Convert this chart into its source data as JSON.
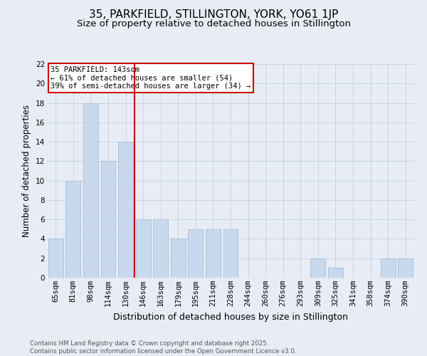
{
  "title": "35, PARKFIELD, STILLINGTON, YORK, YO61 1JP",
  "subtitle": "Size of property relative to detached houses in Stillington",
  "xlabel": "Distribution of detached houses by size in Stillington",
  "ylabel": "Number of detached properties",
  "categories": [
    "65sqm",
    "81sqm",
    "98sqm",
    "114sqm",
    "130sqm",
    "146sqm",
    "163sqm",
    "179sqm",
    "195sqm",
    "211sqm",
    "228sqm",
    "244sqm",
    "260sqm",
    "276sqm",
    "293sqm",
    "309sqm",
    "325sqm",
    "341sqm",
    "358sqm",
    "374sqm",
    "390sqm"
  ],
  "values": [
    4,
    10,
    18,
    12,
    14,
    6,
    6,
    4,
    5,
    5,
    5,
    0,
    0,
    0,
    0,
    2,
    1,
    0,
    0,
    2,
    2
  ],
  "bar_color": "#c9d9ed",
  "bar_edge_color": "#a8bdd4",
  "grid_color": "#c8d4e4",
  "bg_color": "#e8edf5",
  "vline_color": "#cc0000",
  "annotation_text": "35 PARKFIELD: 143sqm\n← 61% of detached houses are smaller (54)\n39% of semi-detached houses are larger (34) →",
  "annotation_box_color": "#ffffff",
  "annotation_border_color": "#cc0000",
  "ylim": [
    0,
    22
  ],
  "yticks": [
    0,
    2,
    4,
    6,
    8,
    10,
    12,
    14,
    16,
    18,
    20,
    22
  ],
  "footer": "Contains HM Land Registry data © Crown copyright and database right 2025.\nContains public sector information licensed under the Open Government Licence v3.0.",
  "title_fontsize": 11,
  "subtitle_fontsize": 9.5,
  "xlabel_fontsize": 9,
  "ylabel_fontsize": 8.5,
  "tick_fontsize": 7.5,
  "annotation_fontsize": 7.5,
  "footer_fontsize": 6.2
}
